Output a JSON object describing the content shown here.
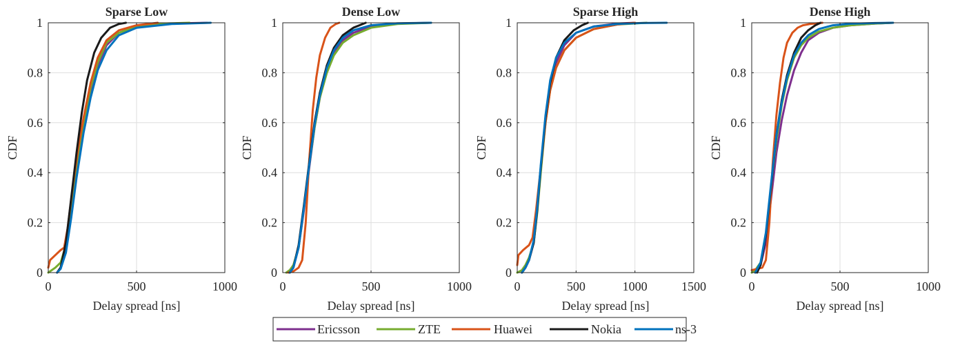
{
  "colors": {
    "Ericsson": "#7E2F8E",
    "ZTE": "#77AC30",
    "Huawei": "#D95319",
    "Nokia": "#1A1A1A",
    "ns-3": "#0072BD"
  },
  "legend": {
    "placement": "bottom-center",
    "entries": [
      "Ericsson",
      "ZTE",
      "Huawei",
      "Nokia",
      "ns-3"
    ]
  },
  "chart_data": [
    {
      "type": "line",
      "title": "Sparse Low",
      "xlabel": "Delay spread [ns]",
      "ylabel": "CDF",
      "xlim": [
        0,
        1000
      ],
      "ylim": [
        0,
        1
      ],
      "xticks": [
        "0",
        "500",
        "1000"
      ],
      "yticks": [
        "0",
        "0.2",
        "0.4",
        "0.6",
        "0.8",
        "1"
      ],
      "grid": true,
      "series": [
        {
          "name": "Ericsson",
          "x": [
            50,
            70,
            100,
            130,
            160,
            200,
            240,
            280,
            330,
            400,
            500,
            700,
            900
          ],
          "y": [
            0,
            0.02,
            0.1,
            0.25,
            0.4,
            0.58,
            0.72,
            0.83,
            0.91,
            0.96,
            0.985,
            0.997,
            1
          ]
        },
        {
          "name": "ZTE",
          "x": [
            0,
            40,
            70,
            100,
            130,
            160,
            200,
            240,
            280,
            330,
            400,
            500,
            650,
            800
          ],
          "y": [
            0,
            0.02,
            0.04,
            0.11,
            0.27,
            0.43,
            0.6,
            0.74,
            0.84,
            0.92,
            0.96,
            0.985,
            0.997,
            1
          ]
        },
        {
          "name": "Huawei",
          "x": [
            0,
            10,
            40,
            70,
            90,
            110,
            140,
            170,
            200,
            240,
            280,
            330,
            400,
            500,
            620
          ],
          "y": [
            0.02,
            0.05,
            0.07,
            0.09,
            0.1,
            0.18,
            0.35,
            0.5,
            0.62,
            0.76,
            0.86,
            0.93,
            0.97,
            0.99,
            1
          ]
        },
        {
          "name": "Nokia",
          "x": [
            50,
            70,
            100,
            130,
            160,
            190,
            220,
            260,
            300,
            350,
            400,
            440
          ],
          "y": [
            0,
            0.02,
            0.12,
            0.3,
            0.48,
            0.64,
            0.77,
            0.88,
            0.94,
            0.98,
            0.995,
            1
          ]
        },
        {
          "name": "ns-3",
          "x": [
            50,
            70,
            100,
            130,
            160,
            200,
            240,
            280,
            330,
            400,
            500,
            700,
            920
          ],
          "y": [
            0,
            0.015,
            0.08,
            0.22,
            0.38,
            0.56,
            0.7,
            0.81,
            0.89,
            0.95,
            0.98,
            0.995,
            1
          ]
        }
      ]
    },
    {
      "type": "line",
      "title": "Dense Low",
      "xlabel": "Delay spread [ns]",
      "ylabel": "CDF",
      "xlim": [
        0,
        1000
      ],
      "ylim": [
        0,
        1
      ],
      "xticks": [
        "0",
        "500",
        "1000"
      ],
      "yticks": [
        "0",
        "0.2",
        "0.4",
        "0.6",
        "0.8",
        "1"
      ],
      "grid": true,
      "series": [
        {
          "name": "Ericsson",
          "x": [
            40,
            60,
            90,
            120,
            150,
            180,
            210,
            250,
            290,
            340,
            400,
            500,
            650,
            840
          ],
          "y": [
            0,
            0.02,
            0.1,
            0.25,
            0.42,
            0.58,
            0.7,
            0.81,
            0.88,
            0.93,
            0.96,
            0.985,
            0.997,
            1
          ]
        },
        {
          "name": "ZTE",
          "x": [
            20,
            40,
            60,
            90,
            120,
            150,
            180,
            210,
            250,
            290,
            340,
            400,
            500,
            650,
            840
          ],
          "y": [
            0,
            0.01,
            0.03,
            0.1,
            0.26,
            0.43,
            0.58,
            0.7,
            0.8,
            0.87,
            0.92,
            0.95,
            0.98,
            0.995,
            1
          ]
        },
        {
          "name": "Huawei",
          "x": [
            30,
            60,
            90,
            110,
            130,
            150,
            170,
            190,
            210,
            240,
            270,
            300,
            320
          ],
          "y": [
            0,
            0.005,
            0.02,
            0.05,
            0.2,
            0.45,
            0.65,
            0.78,
            0.87,
            0.94,
            0.98,
            0.995,
            1
          ]
        },
        {
          "name": "Nokia",
          "x": [
            40,
            60,
            90,
            120,
            150,
            180,
            210,
            250,
            290,
            340,
            400,
            470
          ],
          "y": [
            0,
            0.02,
            0.11,
            0.27,
            0.44,
            0.6,
            0.72,
            0.83,
            0.9,
            0.95,
            0.98,
            1
          ]
        },
        {
          "name": "ns-3",
          "x": [
            40,
            60,
            90,
            120,
            150,
            180,
            210,
            250,
            290,
            340,
            400,
            500,
            650,
            840
          ],
          "y": [
            0,
            0.02,
            0.1,
            0.26,
            0.43,
            0.59,
            0.71,
            0.82,
            0.89,
            0.94,
            0.97,
            0.99,
            0.998,
            1
          ]
        }
      ]
    },
    {
      "type": "line",
      "title": "Sparse High",
      "xlabel": "Delay spread [ns]",
      "ylabel": "CDF",
      "xlim": [
        0,
        1500
      ],
      "ylim": [
        0,
        1
      ],
      "xticks": [
        "0",
        "500",
        "1000",
        "1500"
      ],
      "yticks": [
        "0",
        "0.2",
        "0.4",
        "0.6",
        "0.8",
        "1"
      ],
      "grid": true,
      "series": [
        {
          "name": "Ericsson",
          "x": [
            40,
            70,
            100,
            140,
            170,
            200,
            240,
            280,
            330,
            400,
            500,
            650,
            850,
            1000
          ],
          "y": [
            0,
            0.02,
            0.05,
            0.12,
            0.25,
            0.42,
            0.62,
            0.75,
            0.84,
            0.91,
            0.96,
            0.985,
            0.997,
            1
          ]
        },
        {
          "name": "ZTE",
          "x": [
            0,
            40,
            70,
            100,
            140,
            170,
            200,
            240,
            280,
            330,
            400,
            500,
            650,
            850,
            1100
          ],
          "y": [
            0,
            0.01,
            0.03,
            0.06,
            0.12,
            0.24,
            0.4,
            0.6,
            0.73,
            0.82,
            0.89,
            0.94,
            0.975,
            0.993,
            1
          ]
        },
        {
          "name": "Huawei",
          "x": [
            0,
            10,
            50,
            100,
            130,
            160,
            200,
            240,
            280,
            330,
            400,
            500,
            650,
            850,
            1000
          ],
          "y": [
            0.03,
            0.07,
            0.09,
            0.11,
            0.14,
            0.25,
            0.42,
            0.6,
            0.73,
            0.82,
            0.89,
            0.94,
            0.975,
            0.993,
            1
          ]
        },
        {
          "name": "Nokia",
          "x": [
            40,
            70,
            100,
            140,
            170,
            200,
            240,
            280,
            330,
            400,
            480,
            550,
            600
          ],
          "y": [
            0,
            0.02,
            0.05,
            0.12,
            0.25,
            0.42,
            0.62,
            0.76,
            0.86,
            0.93,
            0.97,
            0.99,
            1
          ]
        },
        {
          "name": "ns-3",
          "x": [
            40,
            70,
            100,
            140,
            170,
            200,
            240,
            280,
            330,
            400,
            500,
            650,
            850,
            1050,
            1270
          ],
          "y": [
            0,
            0.02,
            0.05,
            0.13,
            0.26,
            0.43,
            0.63,
            0.77,
            0.86,
            0.92,
            0.96,
            0.985,
            0.995,
            0.999,
            1
          ]
        }
      ]
    },
    {
      "type": "line",
      "title": "Dense High",
      "xlabel": "Delay spread [ns]",
      "ylabel": "CDF",
      "xlim": [
        0,
        1000
      ],
      "ylim": [
        0,
        1
      ],
      "xticks": [
        "0",
        "500",
        "1000"
      ],
      "yticks": [
        "0",
        "0.2",
        "0.4",
        "0.6",
        "0.8",
        "1"
      ],
      "grid": true,
      "series": [
        {
          "name": "Ericsson",
          "x": [
            20,
            50,
            80,
            110,
            140,
            170,
            200,
            240,
            280,
            320,
            380,
            460,
            560,
            700,
            800
          ],
          "y": [
            0,
            0.03,
            0.12,
            0.3,
            0.48,
            0.61,
            0.71,
            0.81,
            0.88,
            0.93,
            0.96,
            0.98,
            0.99,
            0.997,
            1
          ]
        },
        {
          "name": "ZTE",
          "x": [
            0,
            20,
            50,
            80,
            110,
            140,
            170,
            200,
            240,
            280,
            320,
            380,
            460,
            560,
            700,
            800
          ],
          "y": [
            0,
            0.01,
            0.04,
            0.15,
            0.35,
            0.53,
            0.67,
            0.77,
            0.86,
            0.91,
            0.94,
            0.965,
            0.98,
            0.99,
            0.997,
            1
          ]
        },
        {
          "name": "Huawei",
          "x": [
            0,
            30,
            60,
            80,
            100,
            120,
            140,
            160,
            180,
            200,
            230,
            260,
            290,
            330,
            370,
            400
          ],
          "y": [
            0.01,
            0.015,
            0.02,
            0.05,
            0.2,
            0.45,
            0.63,
            0.76,
            0.86,
            0.92,
            0.96,
            0.98,
            0.99,
            0.995,
            0.998,
            1
          ]
        },
        {
          "name": "Nokia",
          "x": [
            30,
            50,
            80,
            110,
            140,
            170,
            200,
            240,
            280,
            320,
            360,
            390
          ],
          "y": [
            0,
            0.03,
            0.15,
            0.35,
            0.55,
            0.69,
            0.79,
            0.88,
            0.94,
            0.97,
            0.99,
            1
          ]
        },
        {
          "name": "ns-3",
          "x": [
            20,
            50,
            80,
            110,
            140,
            170,
            200,
            240,
            280,
            320,
            380,
            460,
            560,
            700,
            800
          ],
          "y": [
            0,
            0.04,
            0.16,
            0.36,
            0.55,
            0.68,
            0.78,
            0.87,
            0.92,
            0.95,
            0.975,
            0.99,
            0.996,
            0.999,
            1
          ]
        }
      ]
    }
  ]
}
